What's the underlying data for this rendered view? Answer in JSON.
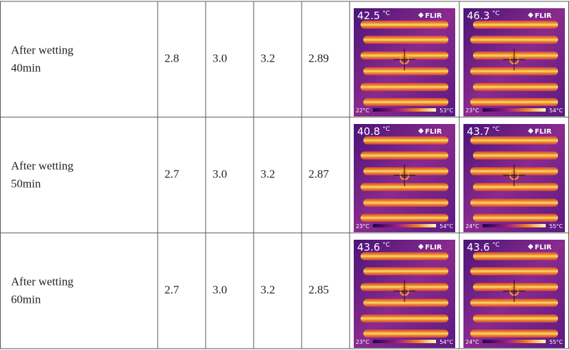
{
  "table": {
    "rows": [
      {
        "label": [
          "After wetting",
          "40min"
        ],
        "values": [
          "2.8",
          "3.0",
          "3.2",
          "2.89"
        ],
        "images": [
          {
            "reading": "42.5",
            "unit": "°C",
            "brand": "FLIR",
            "min": "22°C",
            "max": "53°C"
          },
          {
            "reading": "46.3",
            "unit": "°C",
            "brand": "FLIR",
            "min": "23°C",
            "max": "54°C"
          }
        ]
      },
      {
        "label": [
          "After wetting",
          "50min"
        ],
        "values": [
          "2.7",
          "3.0",
          "3.2",
          "2.87"
        ],
        "images": [
          {
            "reading": "40.8",
            "unit": "°C",
            "brand": "FLIR",
            "min": "23°C",
            "max": "54°C"
          },
          {
            "reading": "43.7",
            "unit": "°C",
            "brand": "FLIR",
            "min": "24°C",
            "max": "55°C"
          }
        ]
      },
      {
        "label": [
          "After wetting",
          "60min"
        ],
        "values": [
          "2.7",
          "3.0",
          "3.2",
          "2.85"
        ],
        "images": [
          {
            "reading": "43.6",
            "unit": "°C",
            "brand": "FLIR",
            "min": "23°C",
            "max": "54°C"
          },
          {
            "reading": "43.6",
            "unit": "°C",
            "brand": "FLIR",
            "min": "24°C",
            "max": "55°C"
          }
        ]
      }
    ]
  }
}
